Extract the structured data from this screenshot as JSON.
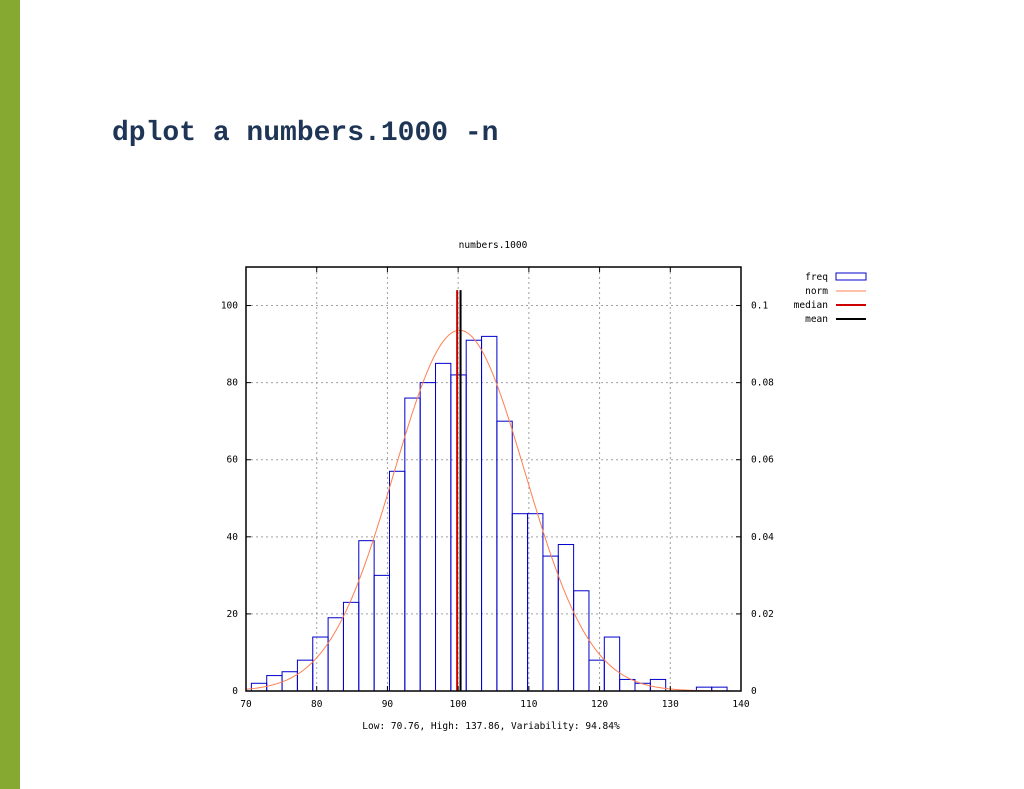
{
  "slide": {
    "title": "dplot a numbers.1000 -n",
    "accent_color": "#86a931",
    "title_color": "#1f3556"
  },
  "chart_data": {
    "type": "bar",
    "title": "numbers.1000",
    "footer": "Low: 70.76, High: 137.86, Variability: 94.84%",
    "xlim": [
      70,
      140
    ],
    "ylim_left": [
      0,
      110
    ],
    "ylim_right": [
      0,
      0.11
    ],
    "x_ticks": [
      "70",
      "80",
      "90",
      "100",
      "110",
      "120",
      "130",
      "140"
    ],
    "y_ticks_left": [
      "0",
      "20",
      "40",
      "60",
      "80",
      "100"
    ],
    "y_ticks_right": [
      "0",
      "0.02",
      "0.04",
      "0.06",
      "0.08",
      "0.1"
    ],
    "grid": true,
    "legend_position": "top-right outside",
    "legend": [
      {
        "label": "freq",
        "kind": "box",
        "color": "#0000cc"
      },
      {
        "label": "norm",
        "kind": "line",
        "color": "#ff7f50"
      },
      {
        "label": "median",
        "kind": "line",
        "color": "#cc0000"
      },
      {
        "label": "mean",
        "kind": "line",
        "color": "#000000"
      }
    ],
    "bin_width": 2.17,
    "bin_start": 70.76,
    "freq": [
      2,
      4,
      5,
      8,
      14,
      19,
      23,
      39,
      30,
      57,
      76,
      80,
      85,
      82,
      91,
      92,
      70,
      46,
      46,
      35,
      38,
      26,
      8,
      14,
      3,
      2,
      3,
      0,
      0,
      1,
      1
    ],
    "norm": {
      "mean": 100.2,
      "sd": 9.25
    },
    "median": 100.0,
    "mean": 100.2
  }
}
